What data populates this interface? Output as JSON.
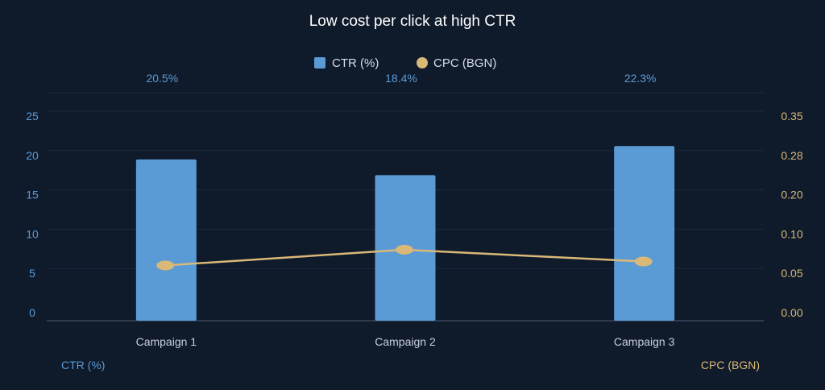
{
  "chart_data": {
    "type": "bar",
    "title": "Low cost per click at high CTR",
    "categories": [
      "Campaign 1",
      "Campaign 2",
      "Campaign 3"
    ],
    "legend": {
      "placement": "top-center"
    },
    "grid": true,
    "series": [
      {
        "name": "CTR (%)",
        "type": "bar",
        "axis": "left",
        "color": "#5b9bd5",
        "values": [
          20.5,
          18.4,
          22.3
        ],
        "data_labels": [
          "20.5%",
          "18.4%",
          "22.3%"
        ]
      },
      {
        "name": "CPC (BGN)",
        "type": "line",
        "axis": "right",
        "color": "#d9b878",
        "values": [
          0.06,
          0.08,
          0.065
        ]
      }
    ],
    "y_left": {
      "label": "CTR (%)",
      "ylim": [
        0,
        25
      ],
      "ticks": [
        0,
        5,
        10,
        15,
        20,
        25
      ],
      "tick_labels": [
        "0",
        "5",
        "10",
        "15",
        "20",
        "25"
      ]
    },
    "y_right": {
      "label": "CPC (BGN)",
      "ylim": [
        0,
        0.35
      ],
      "ticks": [
        0.0,
        0.05,
        0.1,
        0.2,
        0.28,
        0.35
      ],
      "tick_labels": [
        "0.00",
        "0.05",
        "0.10",
        "0.20",
        "0.28",
        "0.35"
      ]
    }
  }
}
